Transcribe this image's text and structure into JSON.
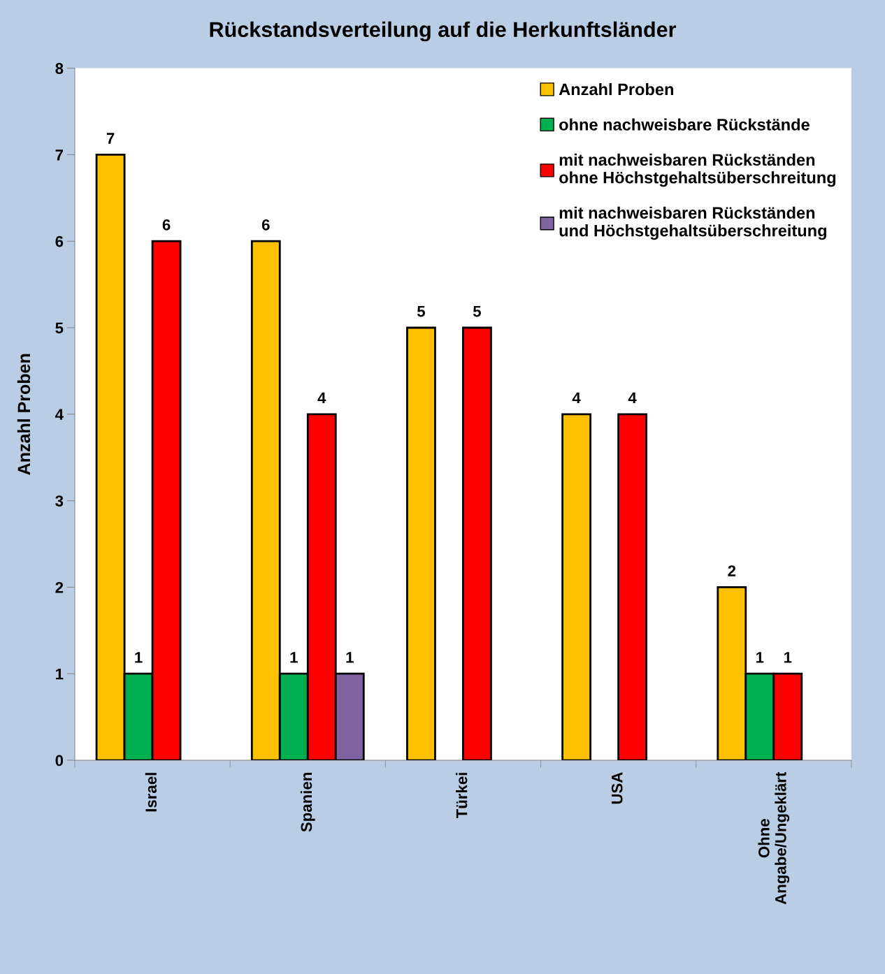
{
  "chart_data": {
    "type": "bar",
    "title": "Rückstandsverteilung auf die Herkunftsländer",
    "ylabel": "Anzahl Proben",
    "categories": [
      "Israel",
      "Spanien",
      "Türkei",
      "USA",
      "Ohne\nAngabe/Ungeklärt"
    ],
    "series": [
      {
        "name": "Anzahl Proben",
        "color": "#ffc000",
        "values": [
          7,
          6,
          5,
          4,
          2
        ]
      },
      {
        "name": "ohne nachweisbare Rückstände",
        "color": "#00b050",
        "values": [
          1,
          1,
          null,
          null,
          1
        ]
      },
      {
        "name": "mit nachweisbaren Rückständen\nohne Höchstgehaltsüberschreitung",
        "color": "#ff0000",
        "values": [
          6,
          4,
          5,
          4,
          1
        ]
      },
      {
        "name": "mit nachweisbaren Rückständen\nund Höchstgehaltsüberschreitung",
        "color": "#8064a2",
        "values": [
          null,
          1,
          null,
          null,
          null
        ]
      }
    ],
    "ylim": [
      0,
      8
    ],
    "yticks": [
      0,
      1,
      2,
      3,
      4,
      5,
      6,
      7,
      8
    ],
    "grid": false,
    "legend": "top right",
    "data_labels": true
  }
}
